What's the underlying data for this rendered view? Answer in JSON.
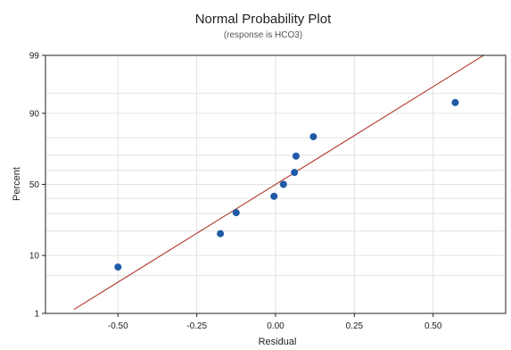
{
  "chart_data": {
    "type": "scatter",
    "title": "Normal Probability Plot",
    "subtitle": "(response is HCO3)",
    "xlabel": "Residual",
    "ylabel": "Percent",
    "xlim": [
      -0.73,
      0.73
    ],
    "y_scale": "normal-probability",
    "x_ticks": [
      -0.5,
      -0.25,
      0.0,
      0.25,
      0.5
    ],
    "x_tick_labels": [
      "-0.50",
      "-0.25",
      "0.00",
      "0.25",
      "0.50"
    ],
    "y_ticks": [
      1,
      10,
      50,
      90,
      99
    ],
    "y_tick_labels": [
      "1",
      "10",
      "50",
      "90",
      "99"
    ],
    "y_minor_gridlines": [
      5,
      20,
      30,
      40,
      60,
      70,
      80,
      95
    ],
    "grid": true,
    "points": [
      {
        "x": -0.5,
        "y": 6.8
      },
      {
        "x": -0.175,
        "y": 18.7
      },
      {
        "x": -0.125,
        "y": 30.5
      },
      {
        "x": -0.005,
        "y": 41.5
      },
      {
        "x": 0.025,
        "y": 50.0
      },
      {
        "x": 0.06,
        "y": 58.5
      },
      {
        "x": 0.065,
        "y": 69.5
      },
      {
        "x": 0.12,
        "y": 80.5
      },
      {
        "x": 0.57,
        "y": 93.0
      }
    ],
    "fit_line": {
      "x": [
        -0.64,
        0.66
      ],
      "y": [
        1.2,
        99.0
      ]
    },
    "point_color": "#1f5aa6",
    "line_color": "#b03a2e"
  }
}
